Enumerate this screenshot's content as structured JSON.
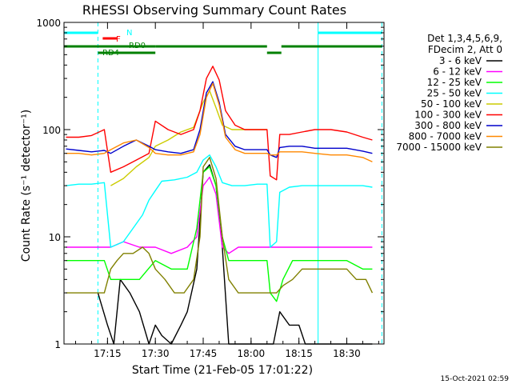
{
  "colors": {
    "background": "#ffffff",
    "axis": "#000000",
    "n_flag": "#00ffff",
    "f_flag": "#ff0000",
    "rd_flag": "#008000"
  },
  "flags": {
    "n_label": "N",
    "f_label": "F",
    "rd0_label": "RD0",
    "rd4_label": "RD4"
  },
  "legend": {
    "header_line1": "Det 1,3,4,5,6,9,",
    "header_line2": "FDecim 2, Att 0"
  },
  "footer_stamp": "15-Oct-2021 02:59",
  "chart_data": {
    "type": "line",
    "title": "RHESSI Observing Summary Count Rates",
    "xlabel": "Start Time (21-Feb-05 17:01:22)",
    "ylabel": "Count Rate (s⁻¹ detector⁻¹)",
    "y_scale": "log",
    "ylim": [
      1,
      1000
    ],
    "xlim": [
      "17:01:22",
      "18:41:40"
    ],
    "x_ticks": [
      "17:15",
      "17:30",
      "17:45",
      "18:00",
      "18:15",
      "18:30"
    ],
    "y_ticks": [
      "1",
      "10",
      "100",
      "1000"
    ],
    "grid": false,
    "legend_position": "right",
    "series": [
      {
        "name": "3 - 6 keV",
        "color": "#000000",
        "x": [
          "17:12",
          "17:15",
          "17:17",
          "17:19",
          "17:22",
          "17:25",
          "17:28",
          "17:30",
          "17:32",
          "17:35",
          "17:38",
          "17:40",
          "17:43",
          "17:45",
          "17:47",
          "17:49",
          "17:51",
          "17:53",
          "17:56",
          "17:58",
          "18:00",
          "18:02",
          "18:05",
          "18:07",
          "18:09",
          "18:12",
          "18:15",
          "18:17",
          "18:19",
          "18:21",
          "18:24",
          "18:27",
          "18:30",
          "18:33",
          "18:36",
          "18:38"
        ],
        "y": [
          3,
          1.5,
          1,
          4,
          3,
          2,
          1,
          1.5,
          1.2,
          1,
          1.5,
          2,
          5,
          40,
          47,
          30,
          8,
          1,
          1,
          1,
          1,
          1,
          1,
          1,
          2,
          1.5,
          1.5,
          1,
          1,
          1,
          1,
          1,
          1,
          1,
          1,
          1
        ]
      },
      {
        "name": "6 - 12 keV",
        "color": "#ff00ff",
        "x": [
          "17:02",
          "17:06",
          "17:10",
          "17:14",
          "17:16",
          "17:20",
          "17:25",
          "17:30",
          "17:35",
          "17:40",
          "17:43",
          "17:45",
          "17:47",
          "17:49",
          "17:51",
          "17:53",
          "17:56",
          "18:00",
          "18:05",
          "18:08",
          "18:12",
          "18:16",
          "18:20",
          "18:25",
          "18:30",
          "18:35",
          "18:38"
        ],
        "y": [
          8,
          8,
          8,
          8,
          8,
          9,
          8,
          8,
          7,
          8,
          10,
          30,
          36,
          25,
          8,
          7,
          8,
          8,
          8,
          8,
          8,
          8,
          8,
          8,
          8,
          8,
          8
        ]
      },
      {
        "name": "12 - 25 keV",
        "color": "#00ff00",
        "x": [
          "17:02",
          "17:06",
          "17:10",
          "17:14",
          "17:16",
          "17:20",
          "17:25",
          "17:30",
          "17:35",
          "17:40",
          "17:43",
          "17:45",
          "17:47",
          "17:49",
          "17:51",
          "17:53",
          "17:56",
          "18:00",
          "18:05",
          "18:06",
          "18:08",
          "18:10",
          "18:13",
          "18:16",
          "18:20",
          "18:25",
          "18:30",
          "18:35",
          "18:38"
        ],
        "y": [
          6,
          6,
          6,
          6,
          4,
          4,
          4,
          6,
          5,
          5,
          12,
          40,
          45,
          30,
          10,
          6,
          6,
          6,
          6,
          3,
          2.5,
          4,
          6,
          6,
          6,
          6,
          6,
          5,
          5
        ]
      },
      {
        "name": "25 - 50 keV",
        "color": "#00ffff",
        "x": [
          "17:02",
          "17:06",
          "17:10",
          "17:14",
          "17:16",
          "17:20",
          "17:23",
          "17:26",
          "17:28",
          "17:30",
          "17:32",
          "17:36",
          "17:40",
          "17:43",
          "17:45",
          "17:47",
          "17:49",
          "17:51",
          "17:54",
          "17:58",
          "18:02",
          "18:05",
          "18:06",
          "18:08",
          "18:09",
          "18:12",
          "18:16",
          "18:20",
          "18:25",
          "18:30",
          "18:35",
          "18:38"
        ],
        "y": [
          30,
          31,
          31,
          32,
          8,
          9,
          12,
          16,
          22,
          27,
          33,
          34,
          36,
          40,
          52,
          58,
          45,
          32,
          30,
          30,
          31,
          31,
          8,
          9,
          26,
          29,
          30,
          30,
          30,
          30,
          30,
          29
        ]
      },
      {
        "name": "50 - 100 keV",
        "color": "#cccc00",
        "x": [
          "17:16",
          "17:20",
          "17:24",
          "17:28",
          "17:30",
          "17:34",
          "17:38",
          "17:42",
          "17:45",
          "17:47",
          "17:49",
          "17:51",
          "17:54",
          "17:58",
          "18:02",
          "18:05"
        ],
        "y": [
          30,
          35,
          45,
          55,
          70,
          80,
          95,
          105,
          180,
          230,
          160,
          110,
          100,
          100,
          100,
          100
        ]
      },
      {
        "name": "100 - 300 keV",
        "color": "#ff0000",
        "x": [
          "17:02",
          "17:06",
          "17:10",
          "17:14",
          "17:16",
          "17:20",
          "17:24",
          "17:28",
          "17:30",
          "17:34",
          "17:38",
          "17:42",
          "17:44",
          "17:46",
          "17:48",
          "17:50",
          "17:52",
          "17:55",
          "17:58",
          "18:02",
          "18:05",
          "18:06",
          "18:08",
          "18:09",
          "18:12",
          "18:16",
          "18:20",
          "18:25",
          "18:30",
          "18:35",
          "18:38"
        ],
        "y": [
          85,
          85,
          88,
          100,
          40,
          45,
          52,
          60,
          120,
          100,
          90,
          100,
          150,
          300,
          390,
          290,
          150,
          110,
          100,
          100,
          100,
          37,
          34,
          90,
          90,
          95,
          100,
          100,
          95,
          85,
          80
        ]
      },
      {
        "name": "300 - 800 keV",
        "color": "#0000cc",
        "x": [
          "17:02",
          "17:06",
          "17:10",
          "17:14",
          "17:16",
          "17:20",
          "17:24",
          "17:28",
          "17:30",
          "17:34",
          "17:38",
          "17:42",
          "17:44",
          "17:46",
          "17:48",
          "17:50",
          "17:52",
          "17:55",
          "17:58",
          "18:02",
          "18:05",
          "18:06",
          "18:08",
          "18:09",
          "18:12",
          "18:16",
          "18:20",
          "18:25",
          "18:30",
          "18:35",
          "18:38"
        ],
        "y": [
          66,
          64,
          62,
          64,
          60,
          70,
          80,
          70,
          65,
          62,
          60,
          65,
          100,
          220,
          280,
          180,
          90,
          70,
          65,
          65,
          65,
          58,
          55,
          68,
          70,
          70,
          67,
          67,
          67,
          63,
          60
        ]
      },
      {
        "name": "800 - 7000 keV",
        "color": "#ff8800",
        "x": [
          "17:02",
          "17:06",
          "17:10",
          "17:14",
          "17:16",
          "17:20",
          "17:24",
          "17:28",
          "17:30",
          "17:34",
          "17:38",
          "17:42",
          "17:44",
          "17:46",
          "17:48",
          "17:50",
          "17:52",
          "17:55",
          "17:58",
          "18:02",
          "18:05",
          "18:06",
          "18:08",
          "18:09",
          "18:12",
          "18:16",
          "18:20",
          "18:25",
          "18:30",
          "18:35",
          "18:38"
        ],
        "y": [
          60,
          60,
          58,
          60,
          65,
          75,
          80,
          68,
          60,
          58,
          58,
          62,
          90,
          200,
          270,
          170,
          85,
          65,
          60,
          60,
          60,
          58,
          58,
          62,
          62,
          62,
          60,
          58,
          58,
          55,
          50
        ]
      },
      {
        "name": "7000 - 15000 keV",
        "color": "#808000",
        "x": [
          "17:02",
          "17:06",
          "17:10",
          "17:14",
          "17:16",
          "17:18",
          "17:20",
          "17:23",
          "17:26",
          "17:28",
          "17:30",
          "17:33",
          "17:36",
          "17:39",
          "17:42",
          "17:44",
          "17:45",
          "17:47",
          "17:49",
          "17:51",
          "17:53",
          "17:56",
          "18:00",
          "18:04",
          "18:06",
          "18:08",
          "18:10",
          "18:13",
          "18:16",
          "18:20",
          "18:25",
          "18:30",
          "18:33",
          "18:36",
          "18:38"
        ],
        "y": [
          3,
          3,
          3,
          3,
          5,
          6,
          7,
          7,
          8,
          7,
          5,
          4,
          3,
          3,
          4,
          10,
          45,
          55,
          35,
          10,
          4,
          3,
          3,
          3,
          3,
          3,
          3.5,
          4,
          5,
          5,
          5,
          5,
          4,
          4,
          3
        ]
      }
    ],
    "vertical_markers": [
      {
        "x": "17:01:22",
        "color": "#00ffff",
        "style": "solid"
      },
      {
        "x": "17:12:00",
        "color": "#00ffff",
        "style": "dashed"
      },
      {
        "x": "18:21:00",
        "color": "#00ffff",
        "style": "solid"
      },
      {
        "x": "18:41:00",
        "color": "#00ffff",
        "style": "dashed"
      }
    ],
    "flag_segments": [
      {
        "flag": "N",
        "color": "#00ffff",
        "y_level": "top",
        "segments": [
          [
            "17:01:22",
            "17:12:00"
          ],
          [
            "18:21:00",
            "18:41:00"
          ]
        ]
      },
      {
        "flag": "F",
        "color": "#ff0000",
        "y_level": "mid",
        "segments": [
          [
            "17:13:30",
            "17:18:00"
          ]
        ]
      },
      {
        "flag": "RD",
        "color": "#008000",
        "y_level": "low",
        "segments": [
          [
            "17:01:22",
            "17:30:00"
          ],
          [
            "17:30:00",
            "18:05:00"
          ],
          [
            "18:05:00",
            "18:09:30"
          ],
          [
            "18:09:30",
            "18:41:00"
          ]
        ]
      }
    ]
  }
}
